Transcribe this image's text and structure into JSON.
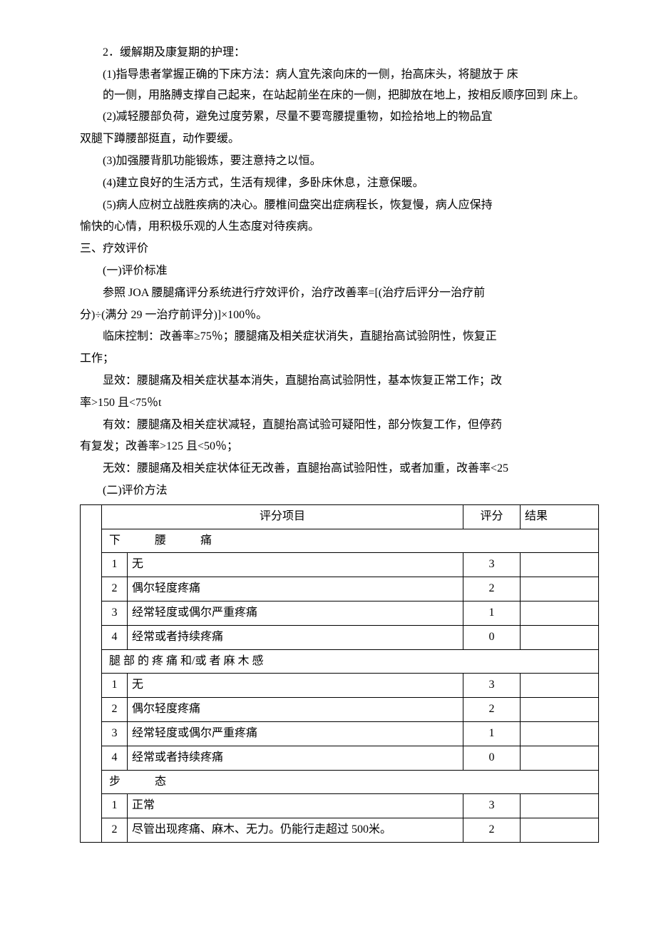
{
  "text": {
    "p1": "2．缓解期及康复期的护理：",
    "p2": "(1)指导患者掌握正确的下床方法：病人宜先滚向床的一侧，抬高床头，将腿放于 床　　　　　　　　的一侧，用胳膊支撑自己起来，在站起前坐在床的一侧，把脚放在地上，按相反顺序回到 床上。",
    "p3": "(2)减轻腰部负荷，避免过度劳累，尽量不要弯腰提重物，如捡拾地上的物品宜",
    "p3b": "双腿下蹲腰部挺直，动作要缓。",
    "p4": "(3)加强腰背肌功能锻炼，要注意持之以恒。",
    "p5": "(4)建立良好的生活方式，生活有规律，多卧床休息，注意保暖。",
    "p6": "(5)病人应树立战胜疾病的决心。腰椎间盘突出症病程长，恢复慢，病人应保持",
    "p6b": "愉快的心情，用积极乐观的人生态度对待疾病。",
    "h1": "三、疗效评价",
    "h2": "(一)评价标准",
    "p7": "参照 JOA 腰腿痛评分系统进行疗效评价，治疗改善率=[(治疗后评分一治疗前",
    "p7b": "分)÷(满分 29 一治疗前评分)]×100％。",
    "p8": "临床控制：改善率≥75％；腰腿痛及相关症状消失，直腿抬高试验阴性，恢复正",
    "p8b": "工作；",
    "p9": "显效：腰腿痛及相关症状基本消失，直腿抬高试验阴性，基本恢复正常工作；改",
    "p9b": "率>150 且<75％t",
    "p10": "有效：腰腿痛及相关症状减轻，直腿抬高试验可疑阳性，部分恢复工作，但停药",
    "p10b": "有复发；改善率>125 且<50％；",
    "p11": "无效：腰腿痛及相关症状体征无改善，直腿抬高试验阳性，或者加重，改善率<25",
    "h3": "(二)评价方法"
  },
  "table": {
    "headers": {
      "item": "评分项目",
      "score": "评分",
      "result": "结果"
    },
    "sections": [
      {
        "title": "下　　　腰　　　痛",
        "rows": [
          {
            "num": "1",
            "desc": "无",
            "score": "3"
          },
          {
            "num": "2",
            "desc": "偶尔轻度疼痛",
            "score": "2"
          },
          {
            "num": "3",
            "desc": "经常轻度或偶尔严重疼痛",
            "score": "1"
          },
          {
            "num": "4",
            "desc": "经常或者持续疼痛",
            "score": "0"
          }
        ]
      },
      {
        "title": "腿 部 的 疼 痛 和/或 者 麻 木 感",
        "rows": [
          {
            "num": "1",
            "desc": "无",
            "score": "3"
          },
          {
            "num": "2",
            "desc": "偶尔轻度疼痛",
            "score": "2"
          },
          {
            "num": "3",
            "desc": "经常轻度或偶尔严重疼痛",
            "score": "1"
          },
          {
            "num": "4",
            "desc": "经常或者持续疼痛",
            "score": "0"
          }
        ]
      },
      {
        "title": "步　　　态",
        "rows": [
          {
            "num": "1",
            "desc": "正常",
            "score": "3"
          },
          {
            "num": "2",
            "desc": "尽管出现疼痛、麻木、无力。仍能行走超过 500米。",
            "score": "2"
          }
        ]
      }
    ]
  }
}
